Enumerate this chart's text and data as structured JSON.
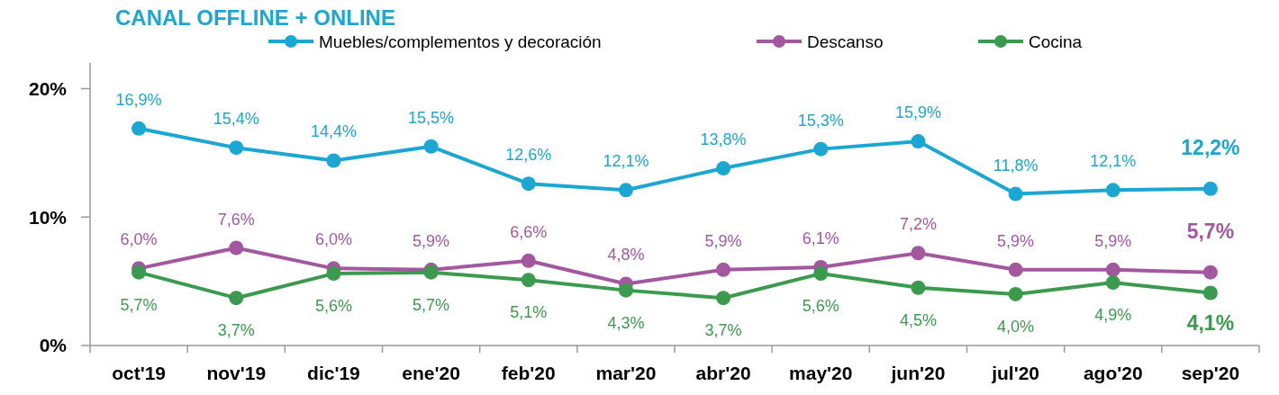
{
  "chart_data": {
    "type": "line",
    "title": "CANAL OFFLINE + ONLINE",
    "categories": [
      "oct'19",
      "nov'19",
      "dic'19",
      "ene'20",
      "feb'20",
      "mar'20",
      "abr'20",
      "may'20",
      "jun'20",
      "jul'20",
      "ago'20",
      "sep'20"
    ],
    "series": [
      {
        "name": "Muebles/complementos y decoración",
        "color": "#1aa7d4",
        "values": [
          16.9,
          15.4,
          14.4,
          15.5,
          12.6,
          12.1,
          13.8,
          15.3,
          15.9,
          11.8,
          12.1,
          12.2
        ],
        "value_labels": [
          "16,9%",
          "15,4%",
          "14,4%",
          "15,5%",
          "12,6%",
          "12,1%",
          "13,8%",
          "15,3%",
          "15,9%",
          "11,8%",
          "12,1%",
          "12,2%"
        ]
      },
      {
        "name": "Descanso",
        "color": "#a3579f",
        "values": [
          6.0,
          7.6,
          6.0,
          5.9,
          6.6,
          4.8,
          5.9,
          6.1,
          7.2,
          5.9,
          5.9,
          5.7
        ],
        "value_labels": [
          "6,0%",
          "7,6%",
          "6,0%",
          "5,9%",
          "6,6%",
          "4,8%",
          "5,9%",
          "6,1%",
          "7,2%",
          "5,9%",
          "5,9%",
          "5,7%"
        ]
      },
      {
        "name": "Cocina",
        "color": "#3a9a4e",
        "values": [
          5.7,
          3.7,
          5.6,
          5.7,
          5.1,
          4.3,
          3.7,
          5.6,
          4.5,
          4.0,
          4.9,
          4.1
        ],
        "value_labels": [
          "5,7%",
          "3,7%",
          "5,6%",
          "5,7%",
          "5,1%",
          "4,3%",
          "3,7%",
          "5,6%",
          "4,5%",
          "4,0%",
          "4,9%",
          "4,1%"
        ]
      }
    ],
    "ylim": [
      0,
      22
    ],
    "yticks": [
      {
        "value": 0,
        "label": "0%"
      },
      {
        "value": 10,
        "label": "10%"
      },
      {
        "value": 20,
        "label": "20%"
      }
    ],
    "grid": false,
    "legend": "top",
    "marker": "circle",
    "line_style": "solid"
  }
}
